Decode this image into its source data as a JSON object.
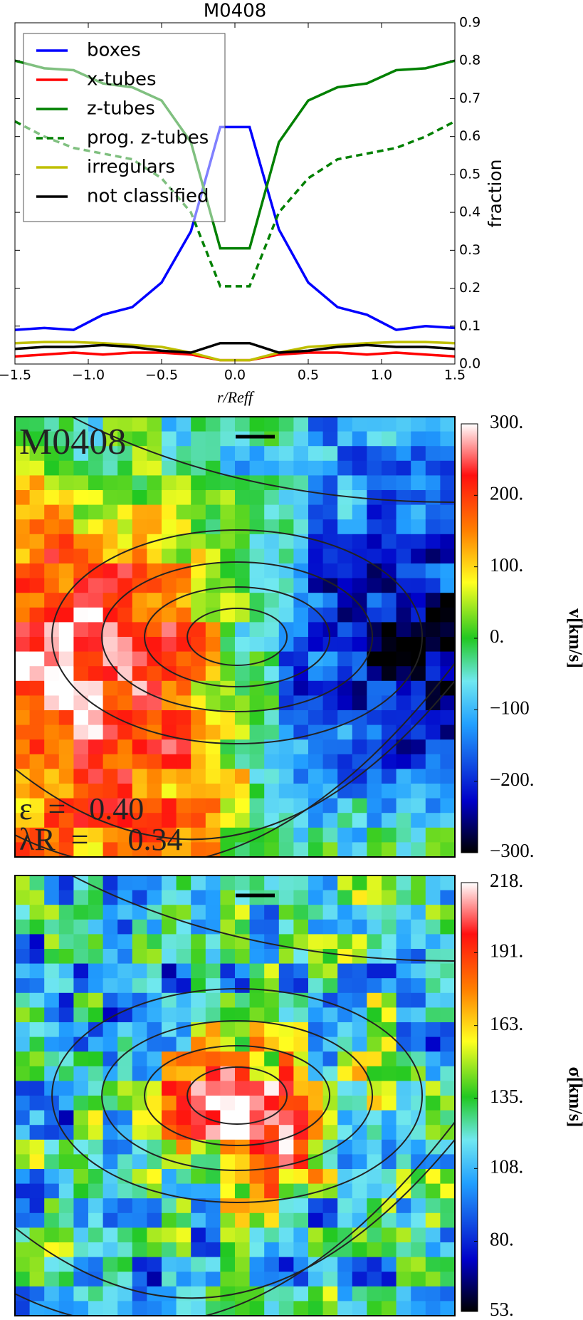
{
  "chart_data": [
    {
      "type": "line",
      "title": "M0408",
      "xlabel": "r/Reff",
      "ylabel": "fraction",
      "x": [
        -1.5,
        -1.3,
        -1.1,
        -0.9,
        -0.7,
        -0.5,
        -0.3,
        -0.1,
        0.1,
        0.3,
        0.5,
        0.7,
        0.9,
        1.1,
        1.3,
        1.5
      ],
      "series": [
        {
          "name": "boxes",
          "color": "#0000ff",
          "values": [
            0.09,
            0.095,
            0.09,
            0.13,
            0.15,
            0.215,
            0.35,
            0.625,
            0.625,
            0.355,
            0.215,
            0.15,
            0.13,
            0.09,
            0.1,
            0.095
          ]
        },
        {
          "name": "x-tubes",
          "color": "#ff0000",
          "values": [
            0.02,
            0.025,
            0.03,
            0.025,
            0.03,
            0.03,
            0.025,
            0.01,
            0.01,
            0.025,
            0.03,
            0.03,
            0.025,
            0.03,
            0.025,
            0.02
          ]
        },
        {
          "name": "z-tubes",
          "color": "#008000",
          "values": [
            0.8,
            0.78,
            0.775,
            0.74,
            0.73,
            0.695,
            0.585,
            0.305,
            0.305,
            0.585,
            0.695,
            0.73,
            0.74,
            0.775,
            0.78,
            0.8
          ]
        },
        {
          "name": "prog. z-tubes",
          "color": "#008000",
          "linestyle": "dashed",
          "values": [
            0.64,
            0.6,
            0.57,
            0.555,
            0.54,
            0.49,
            0.4,
            0.205,
            0.205,
            0.4,
            0.49,
            0.54,
            0.555,
            0.57,
            0.6,
            0.64
          ]
        },
        {
          "name": "irregulars",
          "color": "#bfbf00",
          "values": [
            0.055,
            0.058,
            0.058,
            0.055,
            0.05,
            0.045,
            0.03,
            0.01,
            0.01,
            0.03,
            0.045,
            0.05,
            0.055,
            0.058,
            0.058,
            0.055
          ]
        },
        {
          "name": "not classified",
          "color": "#000000",
          "values": [
            0.04,
            0.045,
            0.045,
            0.05,
            0.045,
            0.035,
            0.03,
            0.055,
            0.055,
            0.03,
            0.035,
            0.045,
            0.05,
            0.045,
            0.045,
            0.04
          ]
        }
      ],
      "xlim": [
        -1.5,
        1.5
      ],
      "xticks": [
        {
          "value": -1.5,
          "label": "−1.5"
        },
        {
          "value": -1.0,
          "label": "−1.0"
        },
        {
          "value": -0.5,
          "label": "−0.5"
        },
        {
          "value": 0,
          "label": "0.0"
        },
        0.5,
        {
          "value": 1,
          "label": "1.0"
        },
        1.5
      ],
      "ylim": [
        0,
        0.9
      ],
      "yticks": [
        {
          "value": 0,
          "label": "0.0"
        },
        0.1,
        0.2,
        0.3,
        0.4,
        0.5,
        0.6,
        0.7,
        0.8,
        0.9
      ],
      "legend": "upper left"
    },
    {
      "type": "map",
      "quantity": "velocity",
      "ylabel": "v[km/s]",
      "annotations": [
        "M0408",
        "ε  =   0.40",
        "λR  =     0.34"
      ],
      "ylim": [
        -300,
        300
      ],
      "yticks": [
        {
          "value": 300,
          "label": "300."
        },
        {
          "value": 200,
          "label": "200."
        },
        {
          "value": 100,
          "label": "100."
        },
        {
          "value": 0,
          "label": "0."
        },
        {
          "value": -100,
          "label": "−100"
        },
        {
          "value": -200,
          "label": "−200."
        },
        {
          "value": -300,
          "label": "−300."
        }
      ]
    },
    {
      "type": "map",
      "quantity": "dispersion",
      "ylabel": "σ[km/s]",
      "ylim": [
        53,
        218
      ],
      "yticks": [
        {
          "value": 218,
          "label": "218."
        },
        {
          "value": 191,
          "label": "191."
        },
        {
          "value": 163,
          "label": "163."
        },
        {
          "value": 135,
          "label": "135."
        },
        {
          "value": 108,
          "label": "108."
        },
        {
          "value": 80,
          "label": "80."
        },
        {
          "value": 53,
          "label": "53."
        }
      ]
    }
  ]
}
